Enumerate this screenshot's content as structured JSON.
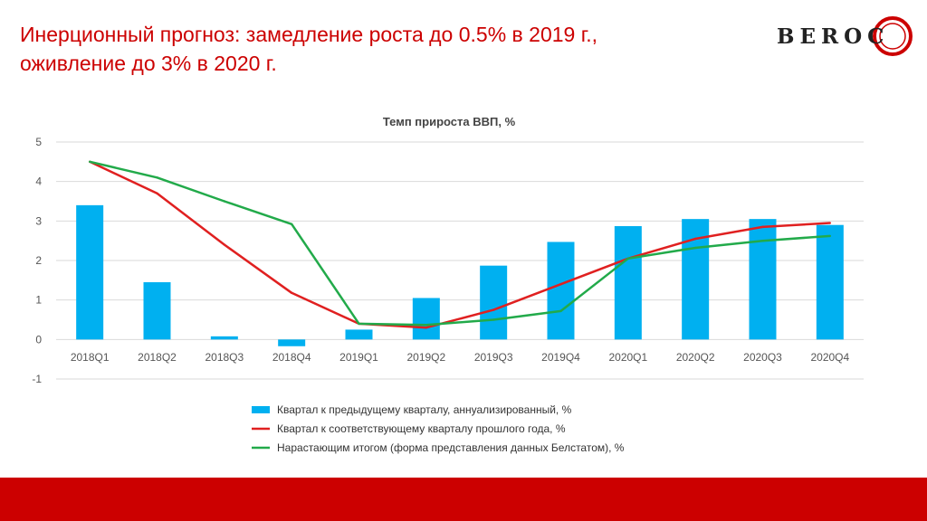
{
  "slide": {
    "title_line1": "Инерционный прогноз: замедление роста до 0.5% в 2019 г.,",
    "title_line2": "оживление до 3% в 2020 г.",
    "logo_text": "BEROC",
    "accent_color": "#cc0000"
  },
  "chart_data": {
    "type": "bar",
    "title": "Темп прироста ВВП, %",
    "categories": [
      "2018Q1",
      "2018Q2",
      "2018Q3",
      "2018Q4",
      "2019Q1",
      "2019Q2",
      "2019Q3",
      "2019Q4",
      "2020Q1",
      "2020Q2",
      "2020Q3",
      "2020Q4"
    ],
    "ylim": [
      -1,
      5
    ],
    "yticks": [
      -1,
      0,
      1,
      2,
      3,
      4,
      5
    ],
    "grid": true,
    "legend_position": "bottom",
    "series": [
      {
        "name": "Квартал к предыдущему кварталу, аннуализированный, %",
        "type": "bar",
        "color": "#00b0f0",
        "values": [
          3.4,
          1.45,
          0.08,
          -0.17,
          0.25,
          1.05,
          1.87,
          2.47,
          2.87,
          3.05,
          3.05,
          2.9
        ]
      },
      {
        "name": "Квартал к соответствующему кварталу прошлого года, %",
        "type": "line",
        "color": "#e02020",
        "values": [
          4.5,
          3.7,
          2.4,
          1.18,
          0.4,
          0.3,
          0.75,
          1.4,
          2.05,
          2.55,
          2.85,
          2.95
        ]
      },
      {
        "name": "Нарастающим итогом (форма представления данных Белстатом), %",
        "type": "line",
        "color": "#22aa4a",
        "values": [
          4.5,
          4.1,
          3.5,
          2.92,
          0.4,
          0.37,
          0.5,
          0.72,
          2.05,
          2.32,
          2.5,
          2.62
        ]
      }
    ]
  }
}
